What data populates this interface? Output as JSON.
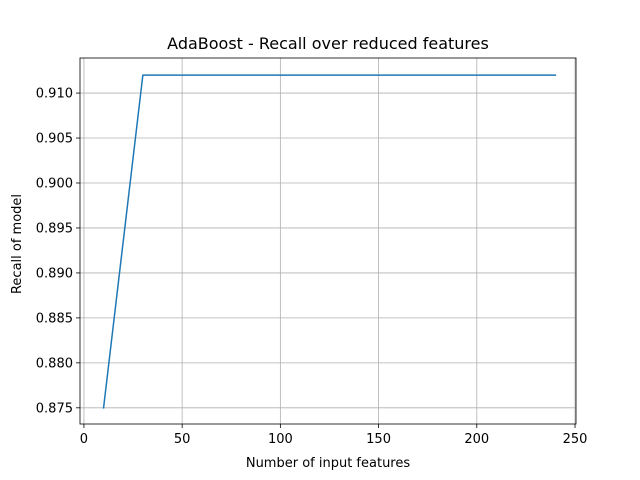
{
  "chart_data": {
    "type": "line",
    "title": "AdaBoost - Recall over reduced features",
    "xlabel": "Number of input features",
    "ylabel": "Recall of model",
    "xlim": [
      -2,
      250.5
    ],
    "ylim": [
      0.8732,
      0.9139
    ],
    "xticks": [
      0,
      50,
      100,
      150,
      200,
      250
    ],
    "xtick_labels": [
      "0",
      "50",
      "100",
      "150",
      "200",
      "250"
    ],
    "yticks": [
      0.875,
      0.88,
      0.885,
      0.89,
      0.895,
      0.9,
      0.905,
      0.91
    ],
    "ytick_labels": [
      "0.875",
      "0.880",
      "0.885",
      "0.890",
      "0.895",
      "0.900",
      "0.905",
      "0.910"
    ],
    "grid": true,
    "series": [
      {
        "color": "#1f77b4",
        "x": [
          10,
          30,
          240
        ],
        "y": [
          0.875,
          0.912,
          0.912
        ]
      }
    ]
  }
}
